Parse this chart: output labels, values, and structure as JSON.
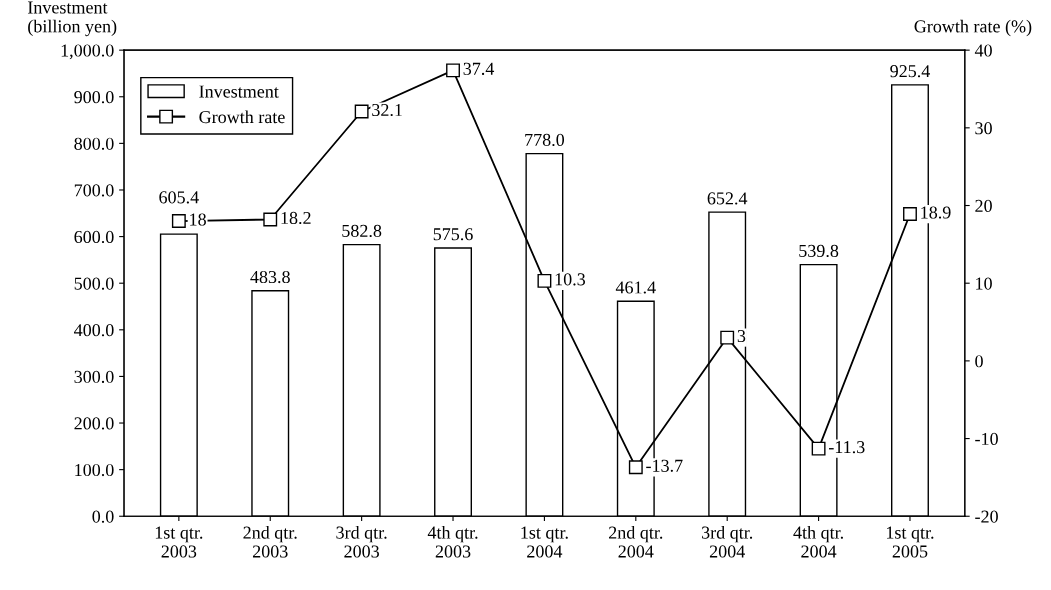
{
  "chart_data": {
    "type": "bar",
    "ylabel": "Investment\n(billion yen)",
    "y2label": "Growth rate (%)",
    "categories": [
      "1st qtr.\n2003",
      "2nd qtr.\n2003",
      "3rd qtr.\n2003",
      "4th qtr.\n2003",
      "1st qtr.\n2004",
      "2nd qtr.\n2004",
      "3rd qtr.\n2004",
      "4th qtr.\n2004",
      "1st qtr.\n2005"
    ],
    "series": [
      {
        "name": "Investment",
        "color": "#ffffff",
        "values": [
          605.4,
          483.8,
          582.8,
          575.6,
          778.0,
          461.4,
          652.4,
          539.8,
          925.4
        ],
        "value_labels": [
          "605.4",
          "483.8",
          "582.8",
          "575.6",
          "778.0",
          "461.4",
          "652.4",
          "539.8",
          "925.4"
        ]
      },
      {
        "name": "Growth rate",
        "type": "line",
        "axis": "y2",
        "color": "#000000",
        "marker": "square",
        "values": [
          18,
          18.2,
          32.1,
          37.4,
          10.3,
          -13.7,
          3,
          -11.3,
          18.9
        ],
        "value_labels": [
          "18",
          "18.2",
          "32.1",
          "37.4",
          "10.3",
          "-13.7",
          "3",
          "-11.3",
          "18.9"
        ]
      }
    ],
    "ylim": [
      0,
      1000
    ],
    "yticks": [
      {
        "value": 0,
        "label": "0.0"
      },
      {
        "value": 100,
        "label": "100.0"
      },
      {
        "value": 200,
        "label": "200.0"
      },
      {
        "value": 300,
        "label": "300.0"
      },
      {
        "value": 400,
        "label": "400.0"
      },
      {
        "value": 500,
        "label": "500.0"
      },
      {
        "value": 600,
        "label": "600.0"
      },
      {
        "value": 700,
        "label": "700.0"
      },
      {
        "value": 800,
        "label": "800.0"
      },
      {
        "value": 900,
        "label": "900.0"
      },
      {
        "value": 1000,
        "label": "1,000.0"
      }
    ],
    "y2lim": [
      -20,
      40
    ],
    "y2ticks": [
      -20,
      -10,
      0,
      10,
      20,
      30,
      40
    ],
    "legend": "top left",
    "grid": false
  }
}
